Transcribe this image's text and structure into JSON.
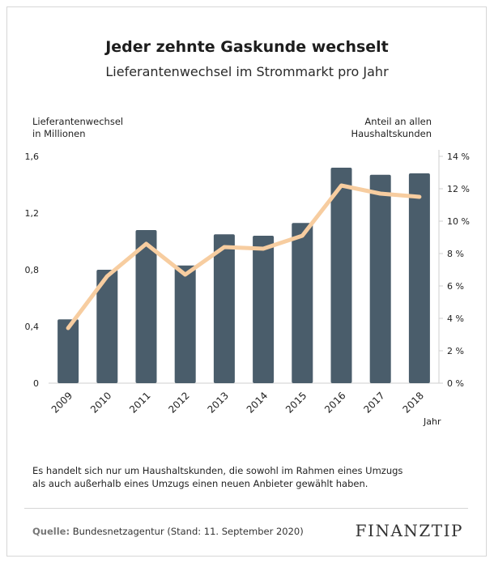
{
  "header": {
    "title": "Jeder zehnte Gaskunde wechselt",
    "subtitle": "Lieferantenwechsel im Strommarkt pro Jahr"
  },
  "axis_labels": {
    "left_line1": "Lieferantenwechsel",
    "left_line2": "in Millionen",
    "right_line1": "Anteil an allen",
    "right_line2": "Haushaltskunden",
    "x_unit": "Jahr"
  },
  "chart_data": {
    "type": "bar",
    "title": "Jeder zehnte Gaskunde wechselt",
    "subtitle": "Lieferantenwechsel im Strommarkt pro Jahr",
    "categories": [
      "2009",
      "2010",
      "2011",
      "2012",
      "2013",
      "2014",
      "2015",
      "2016",
      "2017",
      "2018"
    ],
    "series": [
      {
        "type": "bar",
        "axis": "left",
        "color": "#4a5d6b",
        "values": [
          0.45,
          0.8,
          1.08,
          0.83,
          1.05,
          1.04,
          1.13,
          1.52,
          1.47,
          1.48
        ]
      },
      {
        "type": "line",
        "axis": "right",
        "color": "#f7cda0",
        "values": [
          3.4,
          6.6,
          8.6,
          6.7,
          8.4,
          8.3,
          9.1,
          12.2,
          11.7,
          11.5
        ]
      }
    ],
    "ylim_left": [
      0,
      1.6
    ],
    "yticks_left": [
      "0",
      "0,4",
      "0,8",
      "1,2",
      "1,6"
    ],
    "ylim_right": [
      0,
      14
    ],
    "yticks_right": [
      "0 %",
      "2 %",
      "4 %",
      "6 %",
      "8 %",
      "10 %",
      "12 %",
      "14 %"
    ],
    "ylabel_left": "Lieferantenwechsel in Millionen",
    "ylabel_right": "Anteil an allen Haushaltskunden",
    "xlabel": "Jahr",
    "grid": false
  },
  "footer": {
    "note_line1": "Es handelt sich nur um Haushaltskunden, die sowohl im Rahmen eines Umzugs",
    "note_line2": "als auch außerhalb eines Umzugs einen neuen Anbieter gewählt haben.",
    "source_label": "Quelle:",
    "source_text": "Bundesnetzagentur (Stand: 11. September 2020)",
    "logo_part1": "FINANZ",
    "logo_part2": "TIP"
  }
}
